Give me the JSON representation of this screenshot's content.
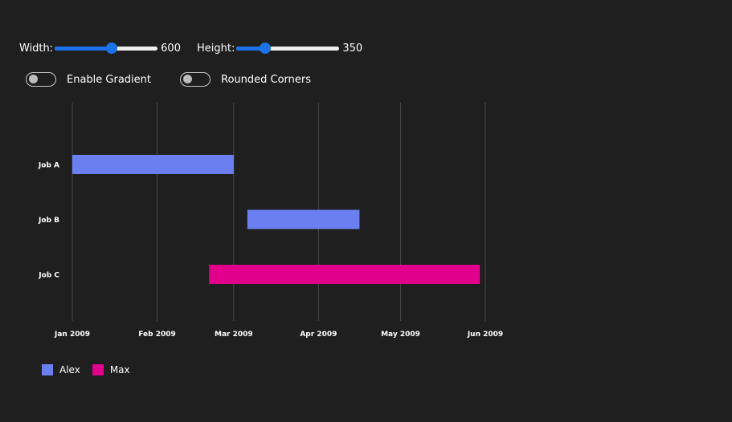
{
  "controls": {
    "width": {
      "label": "Width:",
      "value": "600",
      "min": 100,
      "max": 1000,
      "current": 600
    },
    "height": {
      "label": "Height:",
      "value": "350",
      "min": 100,
      "max": 1000,
      "current": 350
    },
    "gradient": {
      "label": "Enable Gradient",
      "on": false
    },
    "rounded": {
      "label": "Rounded Corners",
      "on": false
    }
  },
  "chart_data": {
    "type": "gantt",
    "title": "",
    "xlabel": "",
    "ylabel": "",
    "categories": [
      "Job A",
      "Job B",
      "Job C"
    ],
    "x_ticks": [
      "Jan 2009",
      "Feb 2009",
      "Mar 2009",
      "Apr 2009",
      "May 2009",
      "Jun 2009"
    ],
    "xlim": [
      "2009-01-01",
      "2009-06-01"
    ],
    "grid": true,
    "legend_position": "bottom-left",
    "series": [
      {
        "name": "Alex",
        "color": "#6b7ff0"
      },
      {
        "name": "Max",
        "color": "#e0008c"
      }
    ],
    "tasks": [
      {
        "category": "Job A",
        "series": "Alex",
        "start": "2009-01-01",
        "end": "2009-03-01"
      },
      {
        "category": "Job B",
        "series": "Alex",
        "start": "2009-03-06",
        "end": "2009-04-16"
      },
      {
        "category": "Job C",
        "series": "Max",
        "start": "2009-02-20",
        "end": "2009-05-30"
      }
    ]
  }
}
